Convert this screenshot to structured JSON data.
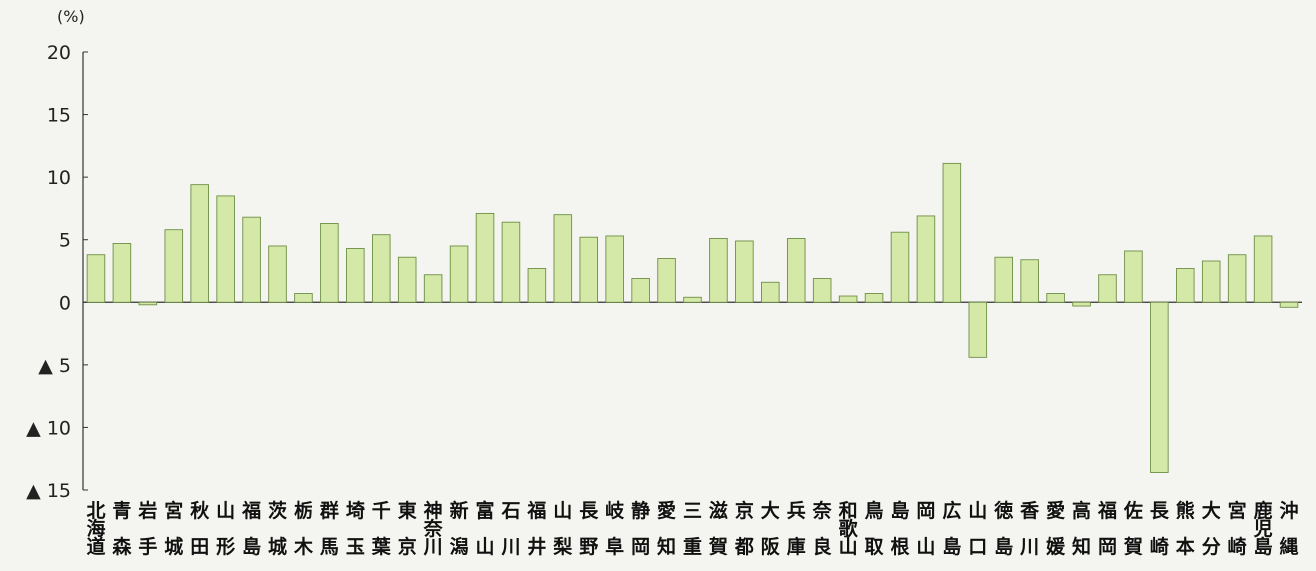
{
  "chart_data": {
    "type": "bar",
    "unit": "(%)",
    "ylim": [
      -15,
      20
    ],
    "yticks": [
      {
        "value": 20,
        "label": "20"
      },
      {
        "value": 15,
        "label": "15"
      },
      {
        "value": 10,
        "label": "10"
      },
      {
        "value": 5,
        "label": "5"
      },
      {
        "value": 0,
        "label": "0"
      },
      {
        "value": -5,
        "label": "▲ 5"
      },
      {
        "value": -10,
        "label": "▲ 10"
      },
      {
        "value": -15,
        "label": "▲ 15"
      }
    ],
    "grid": false,
    "bar_color": "#d4e8a8",
    "bar_stroke": "#6e8f45",
    "categories": [
      "北海道",
      "青森",
      "岩手",
      "宮城",
      "秋田",
      "山形",
      "福島",
      "茨城",
      "栃木",
      "群馬",
      "埼玉",
      "千葉",
      "東京",
      "神奈川",
      "新潟",
      "富山",
      "石川",
      "福井",
      "山梨",
      "長野",
      "岐阜",
      "静岡",
      "愛知",
      "三重",
      "滋賀",
      "京都",
      "大阪",
      "兵庫",
      "奈良",
      "和歌山",
      "鳥取",
      "島根",
      "岡山",
      "広島",
      "山口",
      "徳島",
      "香川",
      "愛媛",
      "高知",
      "福岡",
      "佐賀",
      "長崎",
      "熊本",
      "大分",
      "宮崎",
      "鹿児島",
      "沖縄"
    ],
    "values": [
      3.8,
      4.7,
      -0.2,
      5.8,
      9.4,
      8.5,
      6.8,
      4.5,
      0.7,
      6.3,
      4.3,
      5.4,
      3.6,
      2.2,
      4.5,
      7.1,
      6.4,
      2.7,
      7.0,
      5.2,
      5.3,
      1.9,
      3.5,
      0.4,
      5.1,
      4.9,
      1.6,
      5.1,
      1.9,
      0.5,
      0.7,
      5.6,
      6.9,
      11.1,
      -4.4,
      3.6,
      3.4,
      0.7,
      -0.3,
      2.2,
      4.1,
      -13.6,
      2.7,
      3.3,
      3.8,
      5.3,
      -0.4
    ]
  }
}
